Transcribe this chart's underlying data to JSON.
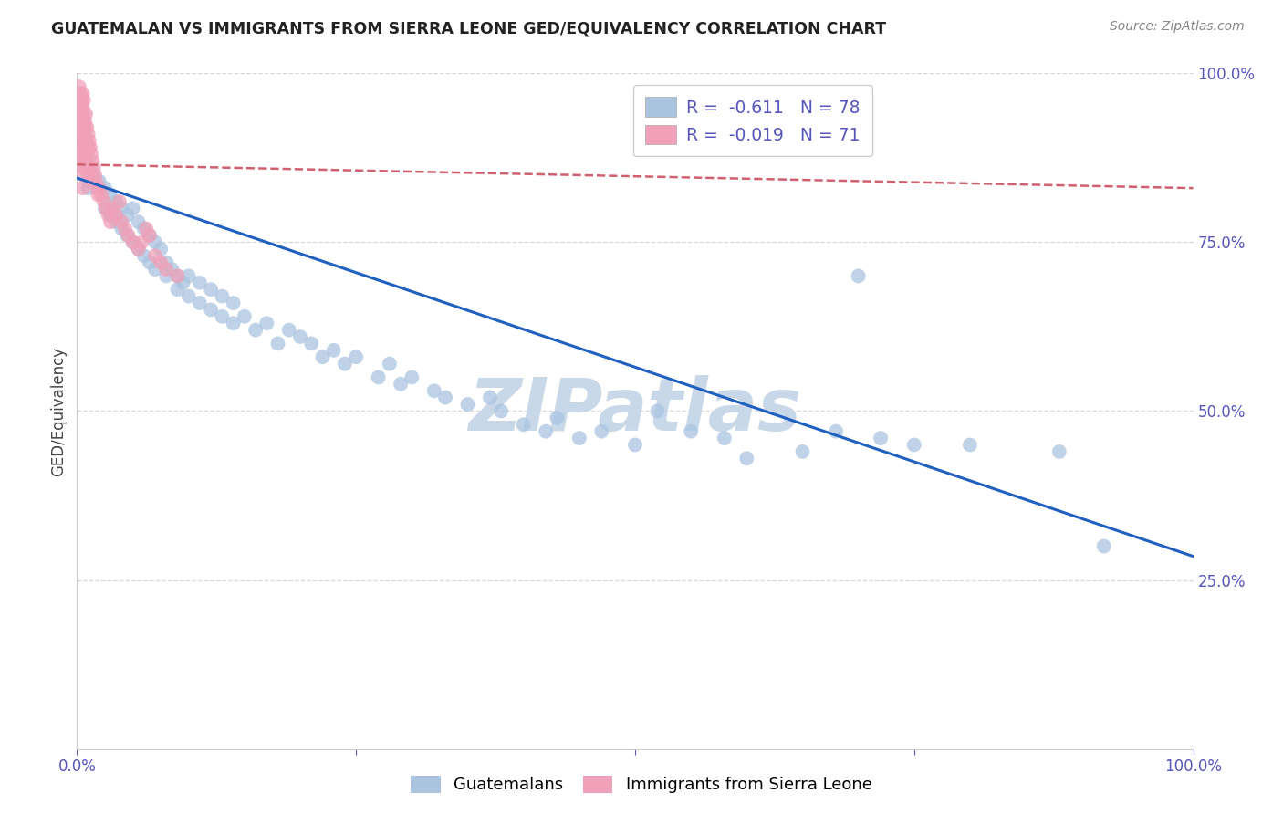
{
  "title": "GUATEMALAN VS IMMIGRANTS FROM SIERRA LEONE GED/EQUIVALENCY CORRELATION CHART",
  "source": "Source: ZipAtlas.com",
  "ylabel": "GED/Equivalency",
  "xlim": [
    0,
    1.0
  ],
  "ylim": [
    0,
    1.0
  ],
  "ytick_right_labels": [
    "100.0%",
    "75.0%",
    "50.0%",
    "25.0%"
  ],
  "ytick_right_values": [
    1.0,
    0.75,
    0.5,
    0.25
  ],
  "blue_R": "-0.611",
  "blue_N": "78",
  "pink_R": "-0.019",
  "pink_N": "71",
  "blue_color": "#aac4e0",
  "pink_color": "#f0a0b8",
  "blue_line_color": "#2060c0",
  "pink_line_color": "#d06070",
  "watermark": "ZIPatlas",
  "watermark_color": "#c8d8e8",
  "blue_scatter_x": [
    0.01,
    0.015,
    0.02,
    0.025,
    0.025,
    0.03,
    0.03,
    0.035,
    0.035,
    0.04,
    0.04,
    0.045,
    0.045,
    0.05,
    0.05,
    0.055,
    0.055,
    0.06,
    0.06,
    0.065,
    0.065,
    0.07,
    0.07,
    0.075,
    0.08,
    0.08,
    0.085,
    0.09,
    0.09,
    0.095,
    0.1,
    0.1,
    0.11,
    0.11,
    0.12,
    0.12,
    0.13,
    0.13,
    0.14,
    0.14,
    0.15,
    0.16,
    0.17,
    0.18,
    0.19,
    0.2,
    0.21,
    0.22,
    0.23,
    0.24,
    0.25,
    0.27,
    0.28,
    0.29,
    0.3,
    0.32,
    0.33,
    0.35,
    0.37,
    0.38,
    0.4,
    0.42,
    0.43,
    0.45,
    0.47,
    0.5,
    0.52,
    0.55,
    0.58,
    0.6,
    0.65,
    0.68,
    0.7,
    0.72,
    0.75,
    0.8,
    0.88,
    0.92
  ],
  "blue_scatter_y": [
    0.83,
    0.85,
    0.84,
    0.83,
    0.8,
    0.82,
    0.79,
    0.81,
    0.78,
    0.8,
    0.77,
    0.79,
    0.76,
    0.8,
    0.75,
    0.78,
    0.74,
    0.77,
    0.73,
    0.76,
    0.72,
    0.75,
    0.71,
    0.74,
    0.72,
    0.7,
    0.71,
    0.7,
    0.68,
    0.69,
    0.7,
    0.67,
    0.69,
    0.66,
    0.68,
    0.65,
    0.67,
    0.64,
    0.66,
    0.63,
    0.64,
    0.62,
    0.63,
    0.6,
    0.62,
    0.61,
    0.6,
    0.58,
    0.59,
    0.57,
    0.58,
    0.55,
    0.57,
    0.54,
    0.55,
    0.53,
    0.52,
    0.51,
    0.52,
    0.5,
    0.48,
    0.47,
    0.49,
    0.46,
    0.47,
    0.45,
    0.5,
    0.47,
    0.46,
    0.43,
    0.44,
    0.47,
    0.7,
    0.46,
    0.45,
    0.45,
    0.44,
    0.3
  ],
  "pink_scatter_x": [
    0.002,
    0.002,
    0.003,
    0.003,
    0.003,
    0.003,
    0.004,
    0.004,
    0.004,
    0.004,
    0.004,
    0.005,
    0.005,
    0.005,
    0.005,
    0.005,
    0.005,
    0.005,
    0.005,
    0.006,
    0.006,
    0.006,
    0.006,
    0.006,
    0.006,
    0.007,
    0.007,
    0.007,
    0.007,
    0.008,
    0.008,
    0.008,
    0.009,
    0.009,
    0.009,
    0.01,
    0.01,
    0.01,
    0.011,
    0.011,
    0.012,
    0.012,
    0.013,
    0.013,
    0.014,
    0.015,
    0.016,
    0.017,
    0.018,
    0.019,
    0.02,
    0.022,
    0.024,
    0.026,
    0.028,
    0.03,
    0.032,
    0.035,
    0.038,
    0.04,
    0.043,
    0.046,
    0.05,
    0.055,
    0.058,
    0.062,
    0.065,
    0.07,
    0.075,
    0.08,
    0.09
  ],
  "pink_scatter_y": [
    0.98,
    0.96,
    0.97,
    0.95,
    0.93,
    0.91,
    0.96,
    0.94,
    0.92,
    0.9,
    0.88,
    0.97,
    0.95,
    0.93,
    0.91,
    0.89,
    0.87,
    0.85,
    0.83,
    0.96,
    0.94,
    0.92,
    0.9,
    0.88,
    0.86,
    0.93,
    0.91,
    0.89,
    0.87,
    0.94,
    0.92,
    0.88,
    0.92,
    0.9,
    0.86,
    0.91,
    0.89,
    0.85,
    0.9,
    0.86,
    0.89,
    0.85,
    0.88,
    0.84,
    0.87,
    0.86,
    0.85,
    0.84,
    0.83,
    0.82,
    0.83,
    0.82,
    0.81,
    0.8,
    0.79,
    0.78,
    0.8,
    0.79,
    0.81,
    0.78,
    0.77,
    0.76,
    0.75,
    0.74,
    0.75,
    0.77,
    0.76,
    0.73,
    0.72,
    0.71,
    0.7
  ],
  "blue_line_x0": 0.0,
  "blue_line_y0": 0.845,
  "blue_line_x1": 1.0,
  "blue_line_y1": 0.285,
  "pink_line_x0": 0.0,
  "pink_line_y0": 0.865,
  "pink_line_x1": 1.0,
  "pink_line_y1": 0.83,
  "legend_label_blue": "Guatemalans",
  "legend_label_pink": "Immigrants from Sierra Leone",
  "background_color": "#ffffff",
  "grid_color": "#d8d8d8"
}
